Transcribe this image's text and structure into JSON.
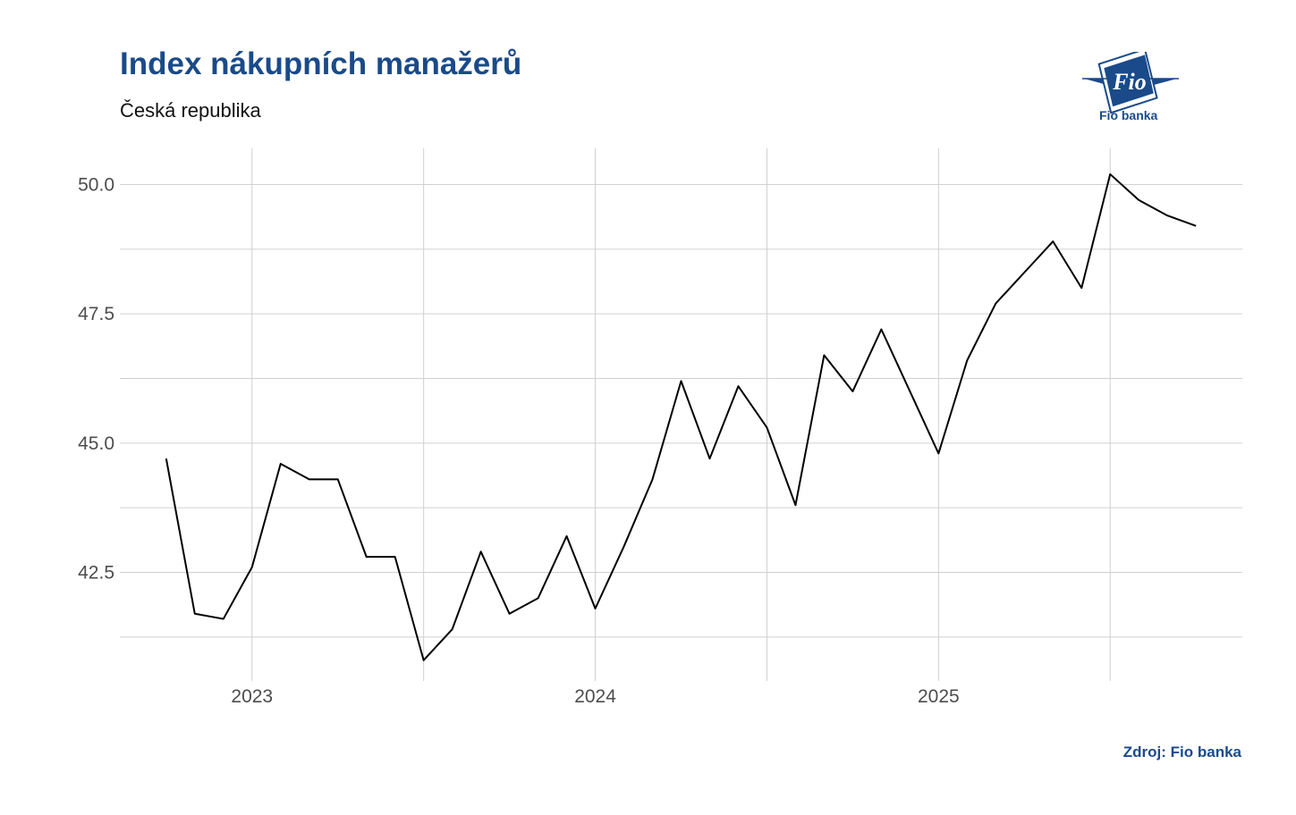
{
  "header": {
    "title": "Index nákupních manažerů",
    "subtitle": "Česká republika"
  },
  "logo": {
    "mark_text": "Fio",
    "caption": "Fio banka"
  },
  "footer": {
    "source": "Zdroj: Fio banka"
  },
  "colors": {
    "title": "#1a4a8a",
    "line": "#000000",
    "grid": "#d0d0d0"
  },
  "chart_data": {
    "type": "line",
    "title": "Index nákupních manažerů",
    "subtitle": "Česká republika",
    "xlabel": "",
    "ylabel": "",
    "x_ticks": [
      "2023",
      "2024",
      "2025"
    ],
    "y_ticks": [
      "42.5",
      "45.0",
      "47.5",
      "50.0"
    ],
    "ylim": [
      40.4,
      50.7
    ],
    "grid": true,
    "legend": "none",
    "series": [
      {
        "x": [
          "2022-10",
          "2022-11",
          "2022-12",
          "2023-01",
          "2023-02",
          "2023-03",
          "2023-04",
          "2023-05",
          "2023-06",
          "2023-07",
          "2023-08",
          "2023-09",
          "2023-10",
          "2023-11",
          "2023-12",
          "2024-01",
          "2024-02",
          "2024-03",
          "2024-04",
          "2024-05",
          "2024-06",
          "2024-07",
          "2024-08",
          "2024-09",
          "2024-10",
          "2024-11",
          "2024-12",
          "2025-01",
          "2025-02",
          "2025-03",
          "2025-04",
          "2025-05",
          "2025-06",
          "2025-07",
          "2025-08",
          "2025-09",
          "2025-10"
        ],
        "values": [
          44.7,
          41.7,
          41.6,
          42.6,
          44.6,
          44.3,
          44.3,
          42.8,
          42.8,
          40.8,
          41.4,
          42.9,
          41.7,
          42.0,
          43.2,
          41.8,
          43.0,
          44.3,
          46.2,
          44.7,
          46.1,
          45.3,
          43.8,
          46.7,
          46.0,
          47.2,
          46.0,
          44.8,
          46.6,
          47.7,
          48.3,
          48.9,
          48.0,
          50.2,
          49.7,
          49.4,
          49.2
        ]
      }
    ]
  }
}
